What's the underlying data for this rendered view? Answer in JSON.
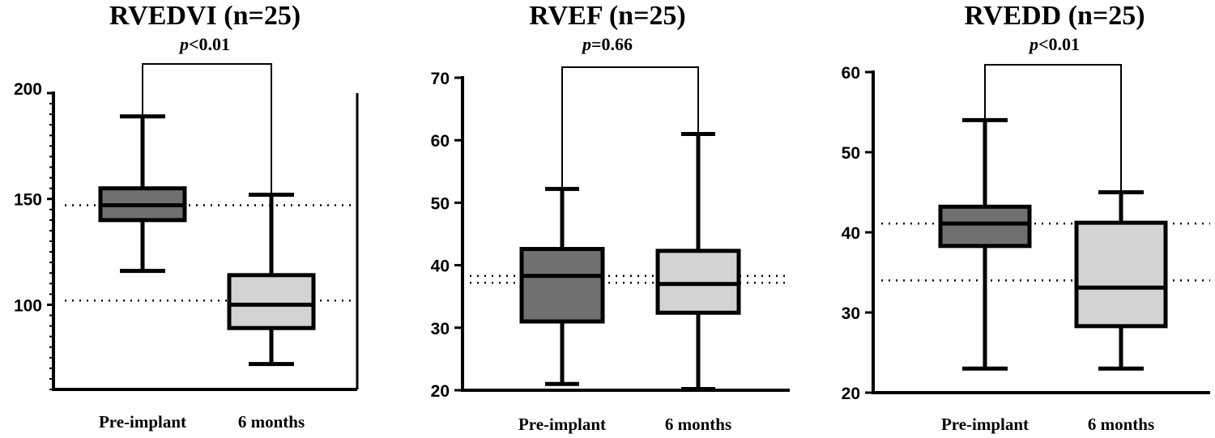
{
  "chart_data": [
    {
      "type": "boxplot",
      "title": "RVEDVI (n=25)",
      "p_label": "p",
      "p_value": "<0.01",
      "categories": [
        "Pre-implant",
        "6 months"
      ],
      "ylim": [
        60,
        200
      ],
      "y_ticks": [
        100,
        150,
        200
      ],
      "y_tick_labels": [
        "100",
        "150",
        "200"
      ],
      "minor_tick_step": 5,
      "boxes": [
        {
          "name": "Pre-implant",
          "min": 116,
          "q1": 140,
          "median": 147,
          "q3": 155,
          "max": 189,
          "color": "#707070"
        },
        {
          "name": "6 months",
          "min": 72,
          "q1": 89,
          "median": 100,
          "q3": 114,
          "max": 152,
          "color": "#d3d3d3"
        }
      ],
      "reference_lines": [
        147,
        102
      ]
    },
    {
      "type": "boxplot",
      "title": "RVEF (n=25)",
      "p_label": "p",
      "p_value": "=0.66",
      "categories": [
        "Pre-implant",
        "6 months"
      ],
      "ylim": [
        20,
        70
      ],
      "y_ticks": [
        20,
        30,
        40,
        50,
        60,
        70
      ],
      "y_tick_labels": [
        "20",
        "30",
        "40",
        "50",
        "60",
        "70"
      ],
      "boxes": [
        {
          "name": "Pre-implant",
          "min": 21,
          "q1": 31,
          "median": 38.3,
          "q3": 42.6,
          "max": 52.2,
          "color": "#707070"
        },
        {
          "name": "6 months",
          "min": 20.2,
          "q1": 32.4,
          "median": 37,
          "q3": 42.3,
          "max": 61,
          "color": "#d3d3d3"
        }
      ],
      "reference_lines": [
        38.3,
        37.2
      ]
    },
    {
      "type": "boxplot",
      "title": "RVEDD (n=25)",
      "p_label": "p",
      "p_value": "<0.01",
      "categories": [
        "Pre-implant",
        "6 months"
      ],
      "ylim": [
        20,
        60
      ],
      "y_ticks": [
        20,
        30,
        40,
        50,
        60
      ],
      "y_tick_labels": [
        "20",
        "30",
        "40",
        "50",
        "60"
      ],
      "boxes": [
        {
          "name": "Pre-implant",
          "min": 23,
          "q1": 38.3,
          "median": 41.1,
          "q3": 43.2,
          "max": 54,
          "color": "#707070"
        },
        {
          "name": "6 months",
          "min": 23,
          "q1": 28.3,
          "median": 33.1,
          "q3": 41.2,
          "max": 45,
          "color": "#d3d3d3"
        }
      ],
      "reference_lines": [
        41.1,
        34
      ]
    }
  ]
}
